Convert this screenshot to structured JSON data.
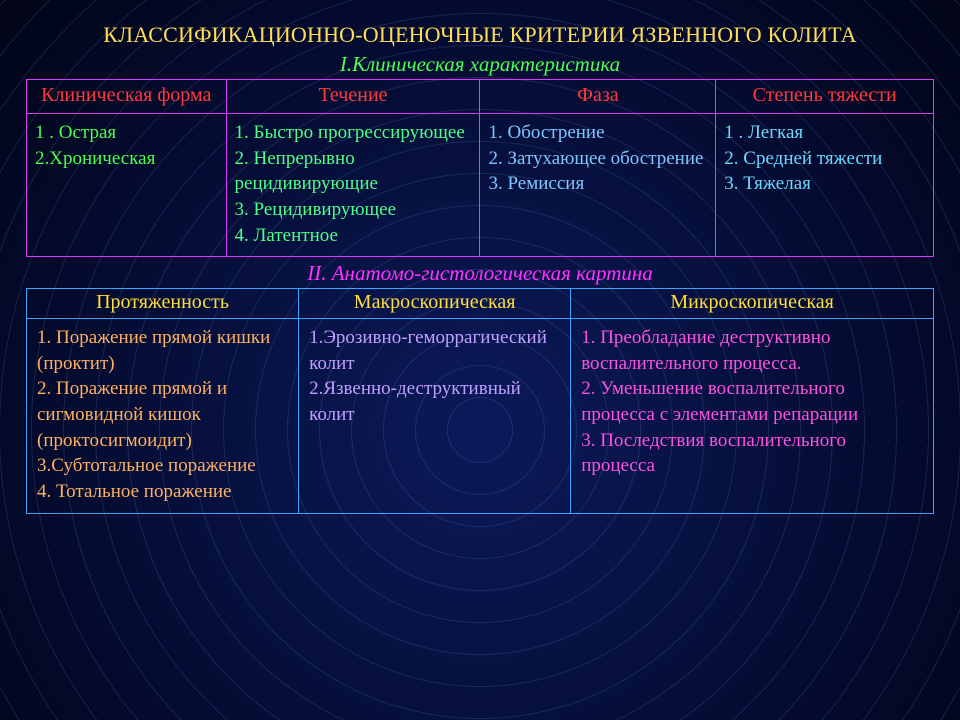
{
  "title": "КЛАССИФИКАЦИОННО-ОЦЕНОЧНЫЕ КРИТЕРИИ ЯЗВЕННОГО КОЛИТА",
  "section1": {
    "heading": "I.Клиническая характеристика",
    "columns": [
      "Клиническая форма",
      "Течение",
      "Фаза",
      "Степень тяжести"
    ],
    "col_widths": [
      "22%",
      "28%",
      "26%",
      "24%"
    ],
    "cells": {
      "c1": [
        "1 . Острая",
        "2.Хроническая"
      ],
      "c2": [
        "1. Быстро прогрессирующее",
        "2. Непрерывно рецидивирующие",
        "3. Рецидивирующее",
        "4. Латентное"
      ],
      "c3": [
        "1. Обострение",
        "2. Затухающее обострение",
        "3. Ремиссия"
      ],
      "c4": [
        "1 . Легкая",
        "2. Средней тяжести",
        "3. Тяжелая"
      ]
    }
  },
  "section2": {
    "heading": "II. Анатомо-гистологическая картина",
    "columns": [
      "Протяженность",
      "Макроскопическая",
      "Микроскопическая"
    ],
    "col_widths": [
      "30%",
      "30%",
      "40%"
    ],
    "cells": {
      "c1": [
        "1. Поражение прямой кишки (проктит)",
        "2. Поражение прямой и сигмовидной кишок (проктосигмоидит)",
        "3.Субтотальное поражение",
        "4. Тотальное поражение"
      ],
      "c2": [
        "1.Эрозивно-геморрагический колит",
        "2.Язвенно-деструктивный колит"
      ],
      "c3": [
        "1. Преобладание деструктивно воспалительного процесса.",
        "2. Уменьшение воспалительного процесса с элементами репарации",
        "3. Последствия воспалительного процесса"
      ]
    }
  },
  "colors": {
    "title": "#ffdd55",
    "sub1": "#4cff4c",
    "sub2": "#ff32ff",
    "table1_border": "#d83aff",
    "table2_border": "#3aa6ff",
    "header1": "#ff3a3a",
    "header2": "#ffdd3a"
  }
}
